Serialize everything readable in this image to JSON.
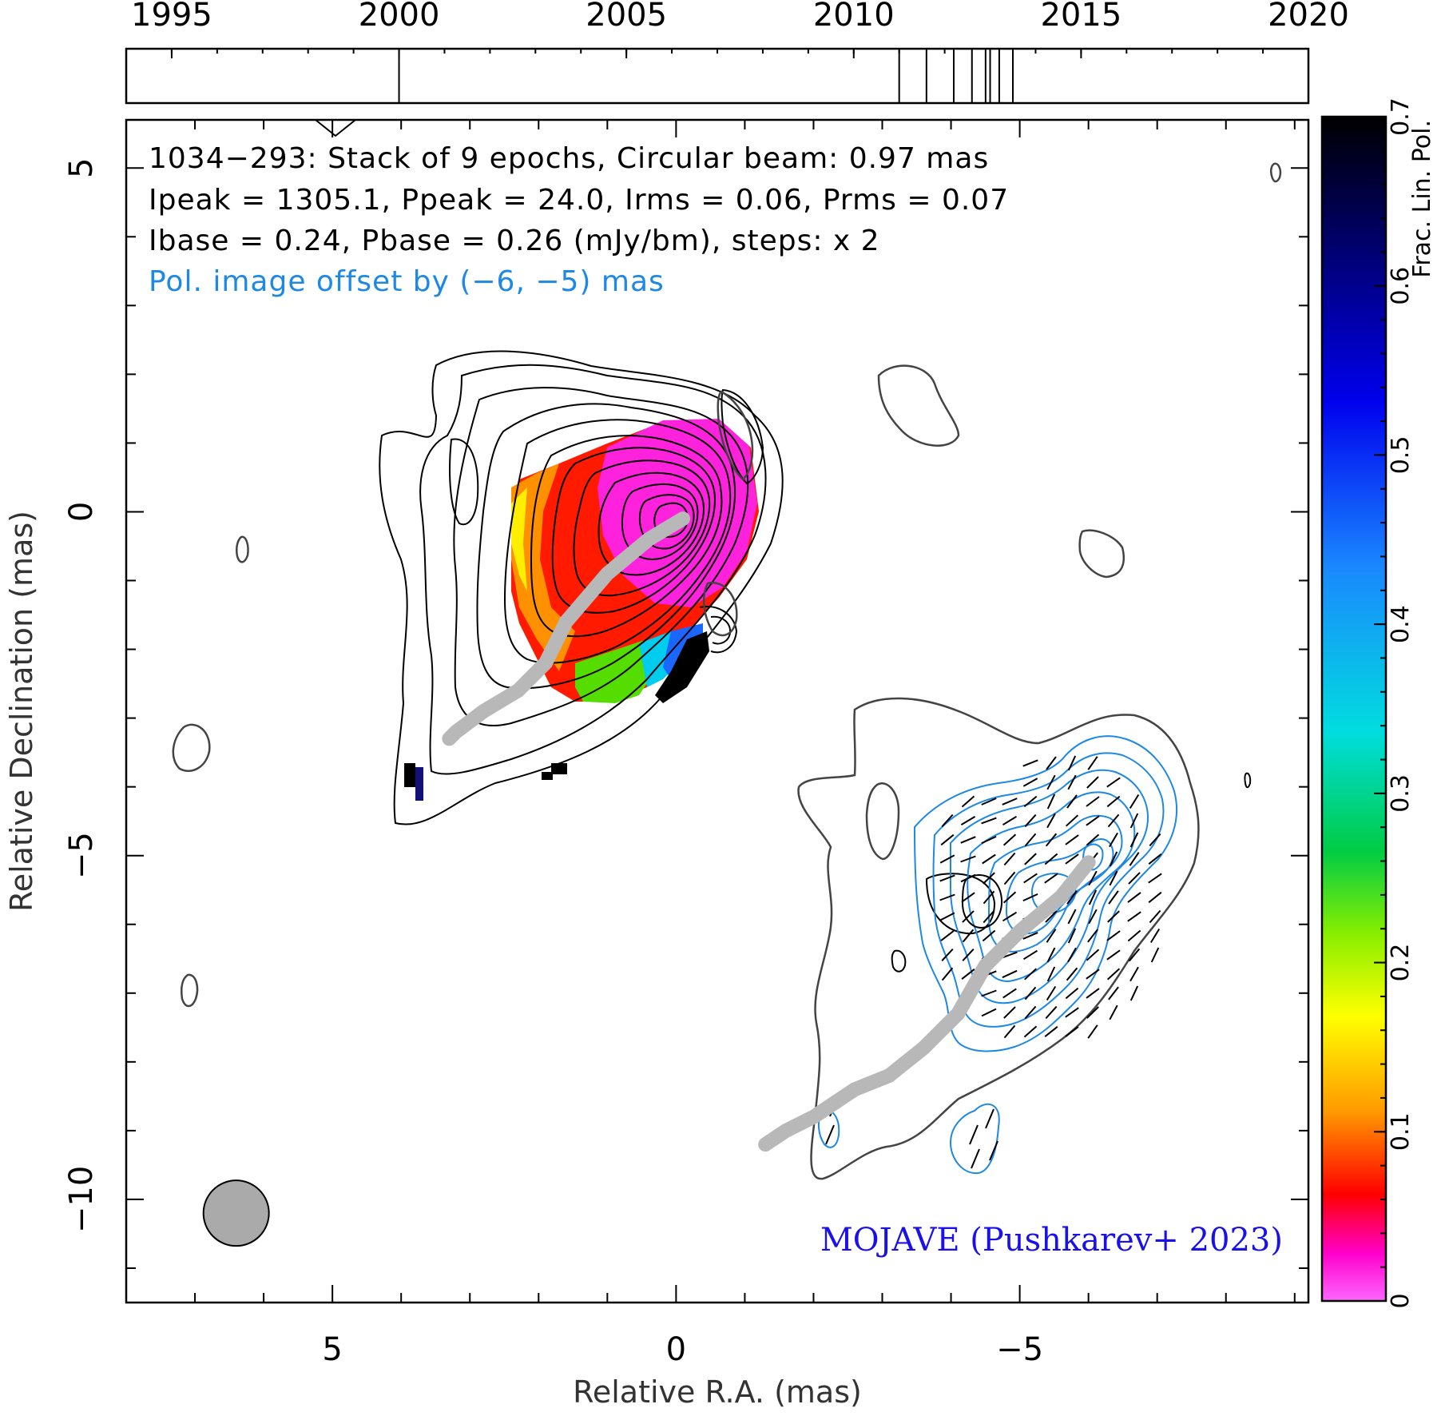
{
  "timeline": {
    "years": [
      "1995",
      "2000",
      "2005",
      "2010",
      "2015",
      "2020"
    ],
    "range": [
      1994,
      2020
    ],
    "epochs": [
      2000.0,
      2011.0,
      2011.6,
      2012.2,
      2012.6,
      2012.9,
      2013.0,
      2013.2,
      2013.5
    ]
  },
  "chart_data": {
    "type": "heatmap",
    "title": "1034−293: Stack of 9 epochs, Circular beam: 0.97 mas",
    "info_line_2": "Ipeak = 1305.1, Ppeak = 24.0, Irms = 0.06, Prms = 0.07",
    "info_line_3": "Ibase = 0.24, Pbase = 0.26 (mJy/bm), steps: x 2",
    "offset_note": "Pol. image offset by (−6, −5) mas",
    "credit": "MOJAVE (Pushkarev+ 2023)",
    "xlabel": "Relative R.A. (mas)",
    "ylabel": "Relative Declination (mas)",
    "xlim": [
      8.0,
      -9.2
    ],
    "ylim": [
      -11.5,
      5.7
    ],
    "x_ticks": [
      {
        "value": 5,
        "label": "5"
      },
      {
        "value": 0,
        "label": "0"
      },
      {
        "value": -5,
        "label": "−5"
      }
    ],
    "y_ticks": [
      {
        "value": 5,
        "label": "5"
      },
      {
        "value": 0,
        "label": "0"
      },
      {
        "value": -5,
        "label": "−5"
      },
      {
        "value": -10,
        "label": "−10"
      }
    ],
    "colorbar": {
      "label": "Frac. Lin. Pol.",
      "range": [
        0,
        0.7
      ],
      "ticks": [
        {
          "value": 0,
          "label": "0"
        },
        {
          "value": 0.1,
          "label": "0.1"
        },
        {
          "value": 0.2,
          "label": "0.2"
        },
        {
          "value": 0.3,
          "label": "0.3"
        },
        {
          "value": 0.4,
          "label": "0.4"
        },
        {
          "value": 0.5,
          "label": "0.5"
        },
        {
          "value": 0.6,
          "label": "0.6"
        },
        {
          "value": 0.7,
          "label": "0.7"
        }
      ]
    },
    "beam": {
      "x": 6.4,
      "y": -10.2,
      "diameter_mas": 0.97
    },
    "ridge_line": [
      [
        -0.1,
        -0.1
      ],
      [
        0.4,
        -0.4
      ],
      [
        1.0,
        -0.9
      ],
      [
        1.6,
        -1.6
      ],
      [
        1.9,
        -2.2
      ],
      [
        2.3,
        -2.6
      ],
      [
        2.8,
        -2.9
      ],
      [
        3.2,
        -3.2
      ],
      [
        3.3,
        -3.3
      ]
    ],
    "ridge_line_pol": [
      [
        -6.0,
        -5.1
      ],
      [
        -5.6,
        -5.6
      ],
      [
        -5.0,
        -6.1
      ],
      [
        -4.5,
        -6.6
      ],
      [
        -4.1,
        -7.3
      ],
      [
        -3.6,
        -7.8
      ],
      [
        -3.1,
        -8.2
      ],
      [
        -2.6,
        -8.4
      ],
      [
        -2.0,
        -8.8
      ],
      [
        -1.6,
        -9.0
      ],
      [
        -1.3,
        -9.2
      ]
    ]
  }
}
